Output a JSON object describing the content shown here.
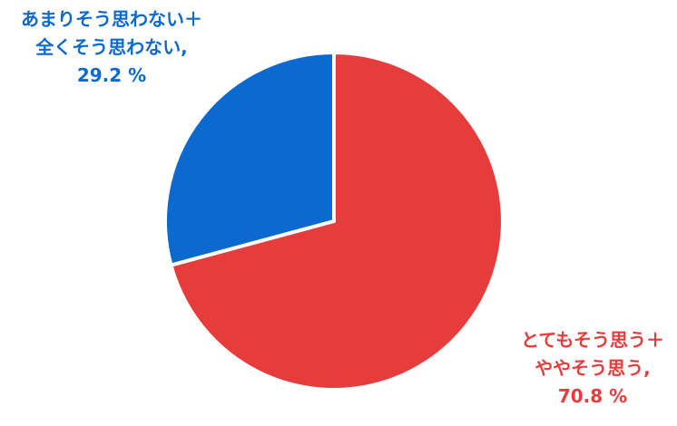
{
  "chart_data": {
    "type": "pie",
    "slices": [
      {
        "label_lines": [
          "とてもそう思う＋",
          "ややそう思う,"
        ],
        "value": 70.8,
        "value_label": "70.8 %",
        "color": "#e63c3c"
      },
      {
        "label_lines": [
          "あまりそう思わない＋",
          "全くそう思わない,"
        ],
        "value": 29.2,
        "value_label": "29.2 %",
        "color": "#0b69d0"
      }
    ],
    "start": "12 o'clock",
    "direction": "clockwise",
    "legend": "none"
  }
}
